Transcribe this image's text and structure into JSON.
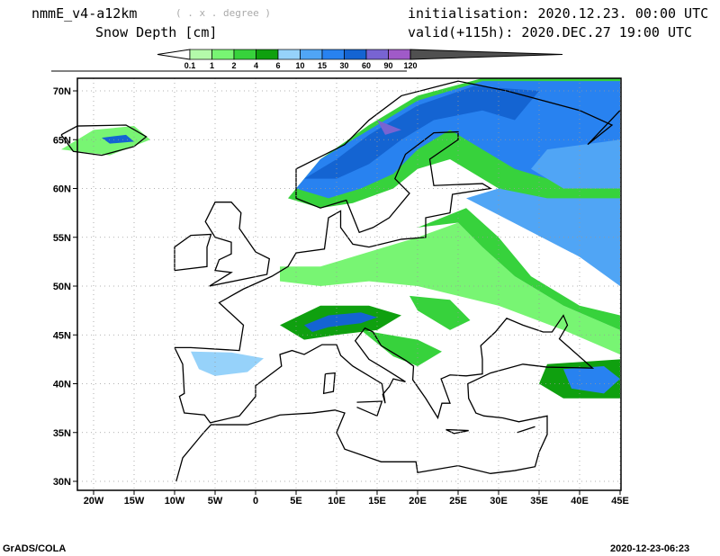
{
  "header": {
    "model": "nmmE_v4-a12km",
    "projection": "( . x . degree )",
    "variable": "Snow Depth [cm]",
    "init": "initialisation: 2020.12.23.  00:00 UTC",
    "valid": "valid(+115h): 2020.DEC.27 19:00 UTC"
  },
  "colorbar": {
    "labels": [
      "0.1",
      "1",
      "2",
      "4",
      "6",
      "10",
      "15",
      "30",
      "60",
      "90",
      "120"
    ],
    "colors": [
      "#ffffff",
      "#b4faaa",
      "#78f573",
      "#37d23c",
      "#0fa00f",
      "#96d2fa",
      "#50a5f5",
      "#2882f0",
      "#1464d2",
      "#7864d2",
      "#a05ac8",
      "#505050"
    ]
  },
  "axes": {
    "lon_labels": [
      "20W",
      "15W",
      "10W",
      "5W",
      "0",
      "5E",
      "10E",
      "15E",
      "20E",
      "25E",
      "30E",
      "35E",
      "40E",
      "45E"
    ],
    "lat_labels": [
      "70N",
      "65N",
      "60N",
      "55N",
      "50N",
      "45N",
      "40N",
      "35N",
      "30N"
    ]
  },
  "footer": {
    "left": "GrADS/COLA",
    "right": "2020-12-23-06:23"
  }
}
